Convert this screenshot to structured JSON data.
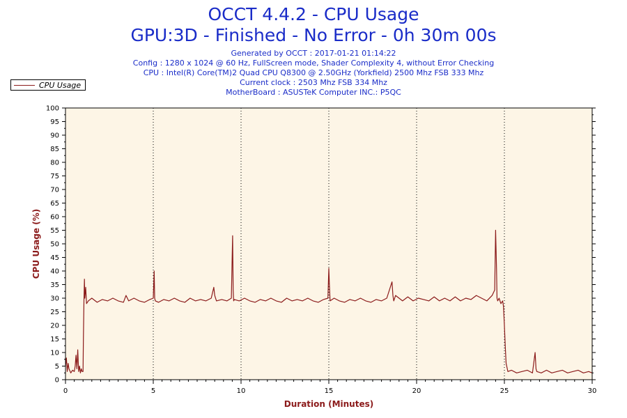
{
  "header": {
    "title_line1": "OCCT 4.4.2 - CPU Usage",
    "title_line2": "GPU:3D - Finished - No Error - 0h 30m 00s",
    "info_lines": [
      "Generated by OCCT : 2017-01-21 01:14:22",
      "Config : 1280 x 1024 @ 60 Hz, FullScreen mode, Shader Complexity 4, without Error Checking",
      "CPU : Intel(R) Core(TM)2 Quad CPU Q8300 @ 2.50GHz (Yorkfield) 2500 Mhz FSB 333 Mhz",
      "Current clock : 2503 Mhz FSB 334 Mhz",
      "MotherBoard : ASUSTeK Computer INC.: P5QC"
    ]
  },
  "legend": {
    "label": "CPU Usage",
    "placement": "top-left"
  },
  "colors": {
    "title": "#1a2cc8",
    "series": "#8b1a1a",
    "axis_title": "#8b1a1a",
    "plot_background": "#fdf5e6",
    "grid": "#000000"
  },
  "chart_data": {
    "type": "line",
    "title": "OCCT 4.4.2 - CPU Usage",
    "xlabel": "Duration (Minutes)",
    "ylabel": "CPU Usage (%)",
    "xlim": [
      0,
      30
    ],
    "ylim": [
      0,
      100
    ],
    "x_ticks": [
      0,
      5,
      10,
      15,
      20,
      25,
      30
    ],
    "y_ticks": [
      0,
      5,
      10,
      15,
      20,
      25,
      30,
      35,
      40,
      45,
      50,
      55,
      60,
      65,
      70,
      75,
      80,
      85,
      90,
      95,
      100
    ],
    "grid": "vertical dotted at major x ticks",
    "series": [
      {
        "name": "CPU Usage",
        "x": [
          0,
          0.05,
          0.1,
          0.15,
          0.2,
          0.3,
          0.4,
          0.5,
          0.55,
          0.6,
          0.65,
          0.7,
          0.75,
          0.8,
          0.85,
          0.9,
          0.95,
          1.0,
          1.02,
          1.05,
          1.08,
          1.1,
          1.15,
          1.2,
          1.3,
          1.5,
          1.8,
          2.1,
          2.4,
          2.7,
          3.0,
          3.3,
          3.45,
          3.6,
          3.9,
          4.2,
          4.5,
          4.8,
          5.0,
          5.05,
          5.08,
          5.12,
          5.3,
          5.6,
          5.9,
          6.2,
          6.5,
          6.8,
          7.1,
          7.4,
          7.7,
          8.0,
          8.3,
          8.45,
          8.5,
          8.6,
          8.9,
          9.2,
          9.45,
          9.5,
          9.52,
          9.55,
          9.58,
          9.62,
          9.9,
          10.2,
          10.5,
          10.8,
          11.1,
          11.4,
          11.7,
          12.0,
          12.3,
          12.6,
          12.9,
          13.2,
          13.5,
          13.8,
          14.1,
          14.4,
          14.7,
          14.95,
          15.0,
          15.03,
          15.07,
          15.3,
          15.6,
          15.9,
          16.2,
          16.5,
          16.8,
          17.1,
          17.4,
          17.7,
          18.0,
          18.3,
          18.6,
          18.65,
          18.7,
          18.8,
          19.0,
          19.2,
          19.5,
          19.8,
          20.1,
          20.4,
          20.7,
          21.0,
          21.3,
          21.6,
          21.9,
          22.2,
          22.5,
          22.8,
          23.1,
          23.4,
          23.7,
          24.0,
          24.3,
          24.45,
          24.5,
          24.55,
          24.58,
          24.62,
          24.7,
          24.8,
          24.9,
          24.95,
          25.0,
          25.05,
          25.1,
          25.2,
          25.4,
          25.7,
          26.0,
          26.3,
          26.6,
          26.75,
          26.8,
          26.85,
          27.1,
          27.4,
          27.7,
          28.0,
          28.3,
          28.6,
          28.9,
          29.2,
          29.5,
          29.8,
          30.0
        ],
        "values": [
          5,
          8,
          3,
          6,
          4,
          2.5,
          3.5,
          3,
          5,
          9,
          4,
          11,
          3,
          5,
          2.5,
          4,
          3,
          3,
          15,
          29,
          37,
          30,
          34,
          28,
          29,
          30,
          28.5,
          29.5,
          29,
          30,
          29,
          28.5,
          31,
          29,
          30,
          29,
          28.5,
          29.5,
          30,
          40,
          30,
          29,
          28.5,
          29.5,
          29,
          30,
          29,
          28.5,
          30,
          29,
          29.5,
          29,
          30,
          34,
          31,
          29,
          29.5,
          29,
          30,
          47,
          53,
          33,
          29,
          29.5,
          29,
          30,
          29,
          28.5,
          29.5,
          29,
          30,
          29,
          28.5,
          30,
          29,
          29.5,
          29,
          30,
          29,
          28.5,
          29.5,
          30,
          41,
          35,
          29,
          30,
          29,
          28.5,
          29.5,
          29,
          30,
          29,
          28.5,
          29.5,
          29,
          30,
          36,
          31,
          29,
          31,
          30,
          29,
          30.5,
          29,
          30,
          29.5,
          29,
          30.5,
          29,
          30,
          29,
          30.5,
          29,
          30,
          29.5,
          31,
          30,
          29,
          31,
          33,
          55,
          41,
          30,
          29,
          30,
          28,
          29,
          27,
          20,
          12,
          6,
          3,
          3.5,
          2.5,
          3,
          3.5,
          2.5,
          10,
          4,
          3,
          2.5,
          3.5,
          2.5,
          3,
          3.5,
          2.5,
          3,
          3.5,
          2.5,
          3,
          2.5
        ]
      }
    ]
  }
}
